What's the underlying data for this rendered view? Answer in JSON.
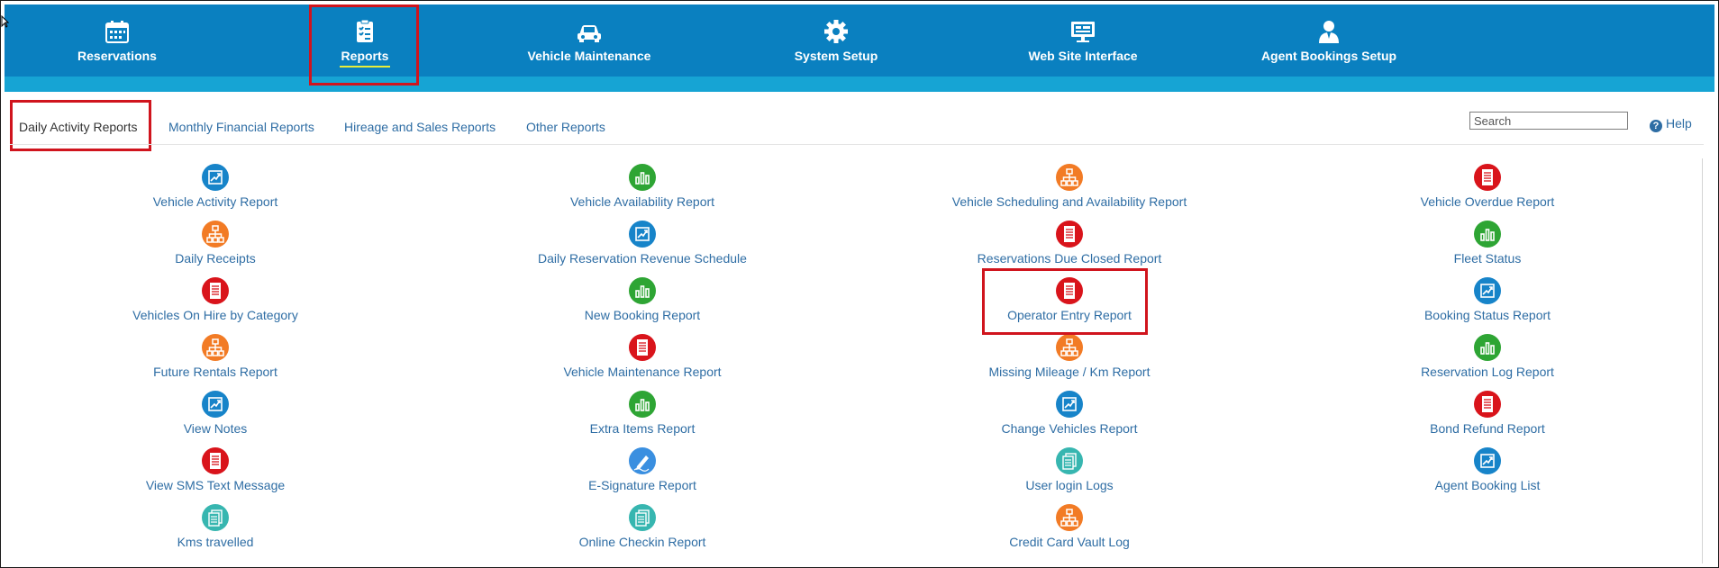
{
  "nav": [
    {
      "label": "Reservations",
      "icon": "calendar-icon"
    },
    {
      "label": "Reports",
      "icon": "clipboard-checklist-icon",
      "active": true
    },
    {
      "label": "Vehicle Maintenance",
      "icon": "car-icon"
    },
    {
      "label": "System Setup",
      "icon": "gear-icon"
    },
    {
      "label": "Web Site Interface",
      "icon": "monitor-icon"
    },
    {
      "label": "Agent Bookings Setup",
      "icon": "user-icon"
    }
  ],
  "tabs": [
    {
      "label": "Daily Activity Reports",
      "active": true
    },
    {
      "label": "Monthly Financial Reports"
    },
    {
      "label": "Hireage and Sales Reports"
    },
    {
      "label": "Other Reports"
    }
  ],
  "search": {
    "placeholder": "Search"
  },
  "help": {
    "label": "Help"
  },
  "colors": {
    "nav_bg": "#0a80c0",
    "sub_bar": "#16a4d4",
    "link": "#2e6da4",
    "highlight": "#d0141d"
  },
  "reports": [
    [
      {
        "label": "Vehicle Activity Report",
        "icon": "chart-trend-icon",
        "color": "blue"
      },
      {
        "label": "Daily Receipts",
        "icon": "org-chart-icon",
        "color": "orange"
      },
      {
        "label": "Vehicles On Hire by Category",
        "icon": "document-list-icon",
        "color": "red"
      },
      {
        "label": "Future Rentals Report",
        "icon": "org-chart-icon",
        "color": "orange"
      },
      {
        "label": "View Notes",
        "icon": "chart-trend-icon",
        "color": "blue"
      },
      {
        "label": "View SMS Text Message",
        "icon": "document-list-icon",
        "color": "red"
      },
      {
        "label": "Kms travelled",
        "icon": "stacked-docs-icon",
        "color": "teal"
      }
    ],
    [
      {
        "label": "Vehicle Availability Report",
        "icon": "bar-chart-icon",
        "color": "green"
      },
      {
        "label": "Daily Reservation Revenue Schedule",
        "icon": "chart-trend-icon",
        "color": "blue"
      },
      {
        "label": "New Booking Report",
        "icon": "bar-chart-icon",
        "color": "green"
      },
      {
        "label": "Vehicle Maintenance Report",
        "icon": "document-list-icon",
        "color": "red"
      },
      {
        "label": "Extra Items Report",
        "icon": "bar-chart-icon",
        "color": "green"
      },
      {
        "label": "E-Signature Report",
        "icon": "pen-signature-icon",
        "color": "lblue"
      },
      {
        "label": "Online Checkin Report",
        "icon": "stacked-docs-icon",
        "color": "teal"
      }
    ],
    [
      {
        "label": "Vehicle Scheduling and Availability Report",
        "icon": "org-chart-icon",
        "color": "orange"
      },
      {
        "label": "Reservations Due Closed Report",
        "icon": "document-list-icon",
        "color": "red"
      },
      {
        "label": "Operator Entry Report",
        "icon": "document-list-icon",
        "color": "red"
      },
      {
        "label": "Missing Mileage / Km Report",
        "icon": "org-chart-icon",
        "color": "orange"
      },
      {
        "label": "Change Vehicles Report",
        "icon": "chart-trend-icon",
        "color": "blue"
      },
      {
        "label": "User login Logs",
        "icon": "stacked-docs-icon",
        "color": "teal"
      },
      {
        "label": "Credit Card Vault Log",
        "icon": "org-chart-icon",
        "color": "orange"
      }
    ],
    [
      {
        "label": "Vehicle Overdue Report",
        "icon": "document-list-icon",
        "color": "red"
      },
      {
        "label": "Fleet Status",
        "icon": "bar-chart-icon",
        "color": "green"
      },
      {
        "label": "Booking Status Report",
        "icon": "chart-trend-icon",
        "color": "blue"
      },
      {
        "label": "Reservation Log Report",
        "icon": "bar-chart-icon",
        "color": "green"
      },
      {
        "label": "Bond Refund Report",
        "icon": "document-list-icon",
        "color": "red"
      },
      {
        "label": "Agent Booking List",
        "icon": "chart-trend-icon",
        "color": "blue"
      }
    ]
  ]
}
